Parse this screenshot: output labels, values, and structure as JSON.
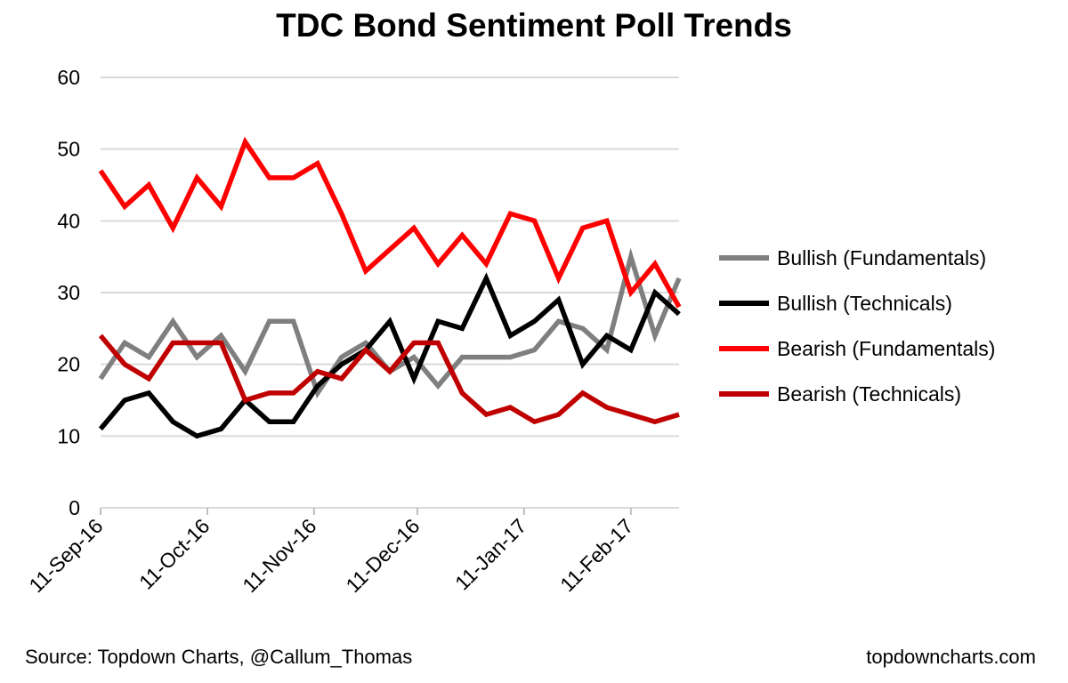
{
  "chart_data": {
    "type": "line",
    "title": "TDC Bond Sentiment Poll Trends",
    "xlabel": "",
    "ylabel": "",
    "ylim": [
      0,
      60
    ],
    "yticks": [
      0,
      10,
      20,
      30,
      40,
      50,
      60
    ],
    "grid": true,
    "legend_position": "right",
    "x": [
      "11-Sep-16",
      "18-Sep-16",
      "25-Sep-16",
      "2-Oct-16",
      "9-Oct-16",
      "16-Oct-16",
      "23-Oct-16",
      "30-Oct-16",
      "6-Nov-16",
      "13-Nov-16",
      "20-Nov-16",
      "27-Nov-16",
      "4-Dec-16",
      "11-Dec-16",
      "18-Dec-16",
      "25-Dec-16",
      "1-Jan-17",
      "8-Jan-17",
      "15-Jan-17",
      "22-Jan-17",
      "29-Jan-17",
      "5-Feb-17",
      "12-Feb-17",
      "19-Feb-17",
      "26-Feb-17"
    ],
    "xtick_labels": [
      {
        "index": 0,
        "label": "11-Sep-16"
      },
      {
        "index": 4.4286,
        "label": "11-Oct-16"
      },
      {
        "index": 8.8571,
        "label": "11-Nov-16"
      },
      {
        "index": 13.1429,
        "label": "11-Dec-16"
      },
      {
        "index": 17.5714,
        "label": "11-Jan-17"
      },
      {
        "index": 22.0,
        "label": "11-Feb-17"
      }
    ],
    "series": [
      {
        "name": "Bullish (Fundamentals)",
        "color": "#7f7f7f",
        "values": [
          18,
          23,
          21,
          26,
          21,
          24,
          19,
          26,
          26,
          16,
          21,
          23,
          19,
          21,
          17,
          21,
          21,
          21,
          22,
          26,
          25,
          22,
          35,
          24,
          32
        ]
      },
      {
        "name": "Bullish (Technicals)",
        "color": "#000000",
        "values": [
          11,
          15,
          16,
          12,
          10,
          11,
          15,
          12,
          12,
          17,
          20,
          22,
          26,
          18,
          26,
          25,
          32,
          24,
          26,
          29,
          20,
          24,
          22,
          30,
          27
        ]
      },
      {
        "name": "Bearish (Fundamentals)",
        "color": "#ff0000",
        "values": [
          47,
          42,
          45,
          39,
          46,
          42,
          51,
          46,
          46,
          48,
          41,
          33,
          36,
          39,
          34,
          38,
          34,
          41,
          40,
          32,
          39,
          40,
          30,
          34,
          28
        ]
      },
      {
        "name": "Bearish (Technicals)",
        "color": "#c00000",
        "values": [
          24,
          20,
          18,
          23,
          23,
          23,
          15,
          16,
          16,
          19,
          18,
          22,
          19,
          23,
          23,
          16,
          13,
          14,
          12,
          13,
          16,
          14,
          13,
          12,
          13
        ]
      }
    ]
  },
  "footer": {
    "source": "Source: Topdown Charts, @Callum_Thomas",
    "site": "topdowncharts.com"
  }
}
